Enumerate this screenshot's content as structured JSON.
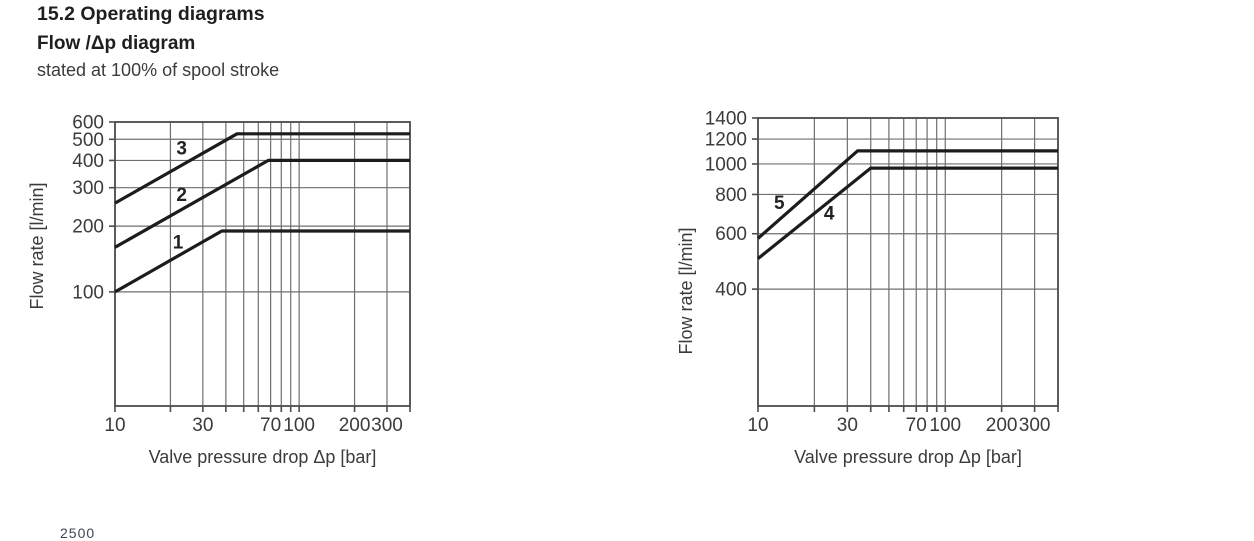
{
  "page": {
    "section_title": "15.2 Operating diagrams",
    "diagram_title": "Flow /Δp diagram",
    "diagram_note": "stated at 100% of spool stroke",
    "footer_fragment": "2500"
  },
  "colors": {
    "heading": "#1f1f1f",
    "text": "#3b3b3b",
    "grid": "#6f6f6f",
    "axis": "#4d4d4d",
    "curve": "#1c1c1c"
  },
  "chart_data": [
    {
      "id": "left",
      "type": "line",
      "xlabel": "Valve pressure drop Δp [bar]",
      "ylabel": "Flow rate [l/min]",
      "xscale": "log",
      "yscale": "log",
      "xlim": [
        10,
        400
      ],
      "ylim": [
        30,
        600
      ],
      "grid": true,
      "legend": "inline-curve-numbers",
      "x_gridlines": [
        10,
        20,
        30,
        40,
        50,
        60,
        70,
        80,
        90,
        100,
        200,
        300,
        400
      ],
      "y_gridlines": [
        100,
        200,
        300,
        400,
        500,
        600
      ],
      "x_tick_values": [
        10,
        30,
        70,
        100,
        200,
        300
      ],
      "x_tick_labels": [
        "10",
        "30",
        "70",
        "100",
        "200",
        "300"
      ],
      "y_tick_values": [
        100,
        200,
        300,
        400,
        500,
        600
      ],
      "y_tick_labels": [
        "100",
        "200",
        "300",
        "400",
        "500",
        "600"
      ],
      "series": [
        {
          "name": "1",
          "points": [
            [
              10,
              100
            ],
            [
              38,
              190
            ],
            [
              400,
              190
            ]
          ],
          "label_at": [
            22,
            167
          ]
        },
        {
          "name": "2",
          "points": [
            [
              10,
              160
            ],
            [
              68,
              400
            ],
            [
              400,
              400
            ]
          ],
          "label_at": [
            23,
            275
          ]
        },
        {
          "name": "3",
          "points": [
            [
              10,
              255
            ],
            [
              46,
              530
            ],
            [
              400,
              530
            ]
          ],
          "label_at": [
            23,
            450
          ]
        }
      ]
    },
    {
      "id": "right",
      "type": "line",
      "xlabel": "Valve pressure drop Δp [bar]",
      "ylabel": "Flow rate [l/min]",
      "xscale": "log",
      "yscale": "log",
      "xlim": [
        10,
        400
      ],
      "ylim": [
        170,
        1400
      ],
      "grid": true,
      "legend": "inline-curve-numbers",
      "x_gridlines": [
        10,
        20,
        30,
        40,
        50,
        60,
        70,
        80,
        90,
        100,
        200,
        300,
        400
      ],
      "y_gridlines": [
        400,
        600,
        800,
        1000,
        1200,
        1400
      ],
      "x_tick_values": [
        10,
        30,
        70,
        100,
        200,
        300
      ],
      "x_tick_labels": [
        "10",
        "30",
        "70",
        "100",
        "200",
        "300"
      ],
      "y_tick_values": [
        400,
        600,
        800,
        1000,
        1200,
        1400
      ],
      "y_tick_labels": [
        "400",
        "600",
        "800",
        "1000",
        "1200",
        "1400"
      ],
      "series": [
        {
          "name": "4",
          "points": [
            [
              10,
              500
            ],
            [
              40,
              970
            ],
            [
              400,
              970
            ]
          ],
          "label_at": [
            24,
            690
          ]
        },
        {
          "name": "5",
          "points": [
            [
              10,
              580
            ],
            [
              34,
              1100
            ],
            [
              400,
              1100
            ]
          ],
          "label_at": [
            13,
            745
          ]
        }
      ]
    }
  ]
}
